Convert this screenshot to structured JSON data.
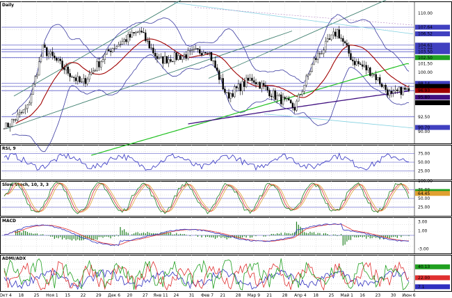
{
  "colors": {
    "grid": "#c8c8c8",
    "hline": "#4040c0",
    "price": "#000000",
    "band": "#3a3aa0",
    "ma_red": "#a00000",
    "ma_green": "#20c020",
    "ma_purple": "#401080",
    "channel": "#408070",
    "cyan": "#80d0e0",
    "rsi": "#3030c0",
    "stoch_red": "#e03030",
    "stoch_green": "#208020",
    "stoch_orange": "#e0a030",
    "macd_blue": "#3030c0",
    "macd_red": "#e03030",
    "hist": "#208020",
    "adx_green": "#20a020",
    "adx_red": "#e03030",
    "adx_blue": "#3030c0"
  },
  "chart_data": {
    "type": "line",
    "x_labels": [
      "Окт 4",
      "18",
      "25",
      "Ноя 1",
      "15",
      "22",
      "29",
      "Дек 6",
      "20",
      "27",
      "Янв 11",
      "24",
      "31",
      "Фев 7",
      "21",
      "28",
      "Мар 9",
      "21",
      "28",
      "Апр 4",
      "18",
      "25",
      "Май 1",
      "16",
      "23",
      "30",
      "Июн 6"
    ],
    "panels": [
      {
        "name": "Daily",
        "ylim": [
          88,
          112
        ],
        "tick_labels": [
          "110.00",
          "107.64",
          "106.52",
          "104.61",
          "103.88",
          "103.50",
          "102.50",
          "101.50",
          "100.00",
          "98.14",
          "97.64",
          "96.93",
          "95.80",
          "94.88",
          "92.50",
          "90.70",
          "90.00"
        ],
        "close_start": 90.5,
        "close_end": 96.9
      },
      {
        "name": "RSI, 9",
        "ylim": [
          0,
          100
        ],
        "tick_labels": [
          "75.00",
          "50.00",
          "25.00"
        ]
      },
      {
        "name": "Slow Stoch, 10, 3, 3",
        "ylim": [
          0,
          100
        ],
        "tick_labels": [
          "100.00",
          "75.00",
          "69.83",
          "64.45",
          "50.00",
          "25.00"
        ]
      },
      {
        "name": "MACD",
        "ylim": [
          -4,
          4
        ],
        "tick_labels": [
          "3.00",
          "1.00",
          "-3.00"
        ]
      },
      {
        "name": "ADMI/ADX",
        "ylim": [
          0,
          60
        ],
        "tick_labels": [
          "40.13",
          "22.00",
          "7.1"
        ]
      }
    ]
  }
}
